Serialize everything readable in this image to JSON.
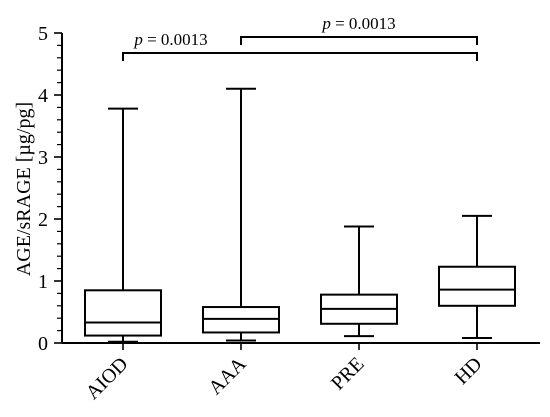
{
  "chart_data": {
    "type": "box",
    "ylabel": "AGE/sRAGE [µg/pg]",
    "xlabel": "",
    "ylim": [
      0,
      5
    ],
    "yticks": [
      "0",
      "1",
      "2",
      "3",
      "4",
      "5"
    ],
    "categories": [
      "AIOD",
      "AAA",
      "PRE",
      "HD"
    ],
    "boxes": [
      {
        "category": "AIOD",
        "min": 0.02,
        "q1": 0.12,
        "median": 0.33,
        "q3": 0.85,
        "max": 3.78
      },
      {
        "category": "AAA",
        "min": 0.04,
        "q1": 0.17,
        "median": 0.39,
        "q3": 0.58,
        "max": 4.1
      },
      {
        "category": "PRE",
        "min": 0.11,
        "q1": 0.31,
        "median": 0.55,
        "q3": 0.78,
        "max": 1.88
      },
      {
        "category": "HD",
        "min": 0.08,
        "q1": 0.6,
        "median": 0.86,
        "q3": 1.23,
        "max": 2.05
      }
    ],
    "annotations": [
      {
        "from": "AIOD",
        "to": "HD",
        "p_label": "p",
        "p_value": " = 0.0013"
      },
      {
        "from": "AAA",
        "to": "HD",
        "p_label": "p",
        "p_value": " = 0.0013"
      }
    ],
    "grid": false,
    "legend": "none"
  }
}
